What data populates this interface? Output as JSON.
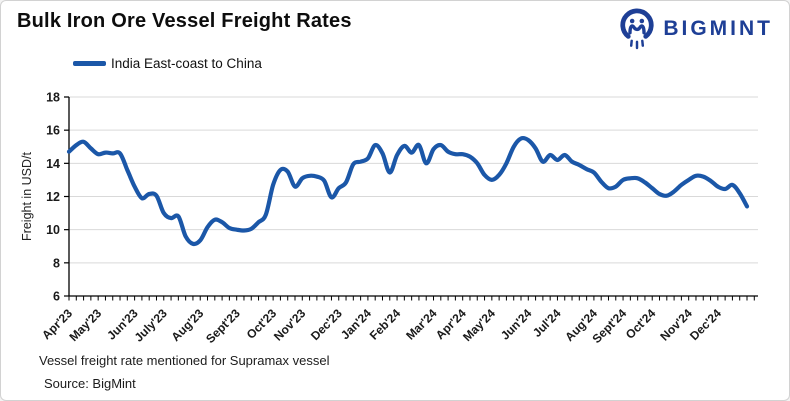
{
  "header": {
    "title": "Bulk Iron Ore Vessel Freight Rates"
  },
  "logo": {
    "text": "BIGMINT",
    "color": "#1e3f96",
    "icon": "bigmint-mark-icon"
  },
  "legend": {
    "label": "India East-coast to China",
    "color": "#1b57a8"
  },
  "footnotes": {
    "note": "Vessel freight rate mentioned for Supramax vessel",
    "source": "Source:  BigMint"
  },
  "chart_data": {
    "type": "line",
    "title": "Bulk Iron Ore Vessel Freight Rates",
    "xlabel": "",
    "ylabel": "Freight  in USD/t",
    "ylim": [
      6,
      18
    ],
    "yticks": [
      6,
      8,
      10,
      12,
      14,
      16,
      18
    ],
    "grid": "horizontal",
    "legend_position": "top-left",
    "x_unit": "weekly",
    "months": [
      {
        "label": "Apr'23",
        "week": 0
      },
      {
        "label": "May'23",
        "week": 4
      },
      {
        "label": "Jun'23",
        "week": 9
      },
      {
        "label": "July'23",
        "week": 13
      },
      {
        "label": "Aug'23",
        "week": 18
      },
      {
        "label": "Sept'23",
        "week": 23
      },
      {
        "label": "Oct'23",
        "week": 28
      },
      {
        "label": "Nov'23",
        "week": 32
      },
      {
        "label": "Dec'23",
        "week": 37
      },
      {
        "label": "Jan'24",
        "week": 41
      },
      {
        "label": "Feb'24",
        "week": 45
      },
      {
        "label": "Mar'24",
        "week": 50
      },
      {
        "label": "Apr'24",
        "week": 54
      },
      {
        "label": "May'24",
        "week": 58
      },
      {
        "label": "Jun'24",
        "week": 63
      },
      {
        "label": "Jul'24",
        "week": 67
      },
      {
        "label": "Aug'24",
        "week": 72
      },
      {
        "label": "Sept'24",
        "week": 76
      },
      {
        "label": "Oct'24",
        "week": 80
      },
      {
        "label": "Nov'24",
        "week": 85
      },
      {
        "label": "Dec'24",
        "week": 89
      }
    ],
    "series": [
      {
        "name": "India East-coast to China",
        "color": "#1b57a8",
        "values": [
          14.7,
          15.1,
          15.3,
          14.9,
          14.55,
          14.65,
          14.6,
          14.6,
          13.6,
          12.6,
          11.9,
          12.15,
          12.05,
          11.0,
          10.7,
          10.8,
          9.6,
          9.15,
          9.35,
          10.15,
          10.6,
          10.45,
          10.1,
          10.0,
          9.95,
          10.05,
          10.45,
          10.9,
          12.7,
          13.6,
          13.5,
          12.6,
          13.1,
          13.25,
          13.2,
          12.95,
          11.95,
          12.5,
          12.85,
          13.95,
          14.1,
          14.3,
          15.1,
          14.6,
          13.45,
          14.5,
          15.05,
          14.65,
          15.1,
          14.0,
          14.85,
          15.1,
          14.7,
          14.55,
          14.55,
          14.4,
          14.0,
          13.3,
          13.0,
          13.3,
          14.0,
          15.0,
          15.5,
          15.4,
          14.9,
          14.1,
          14.5,
          14.2,
          14.5,
          14.1,
          13.9,
          13.65,
          13.45,
          12.9,
          12.5,
          12.6,
          13.0,
          13.1,
          13.1,
          12.85,
          12.5,
          12.15,
          12.05,
          12.3,
          12.7,
          13.0,
          13.25,
          13.2,
          12.95,
          12.6,
          12.45,
          12.7,
          12.2,
          11.4
        ]
      }
    ]
  }
}
